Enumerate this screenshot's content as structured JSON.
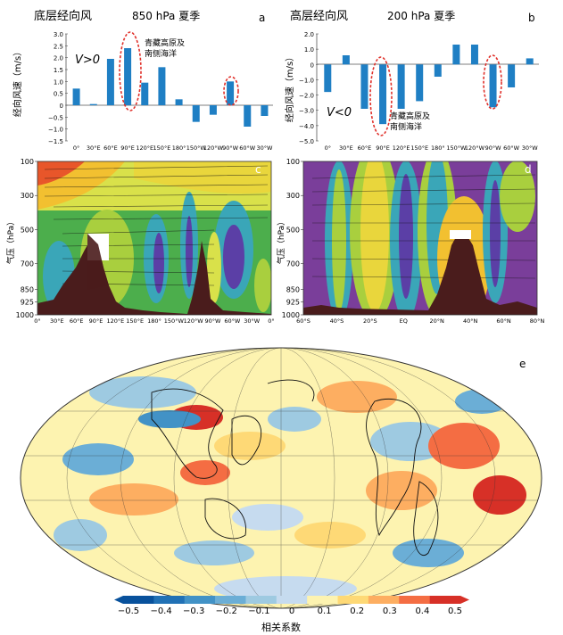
{
  "chart_data": [
    {
      "id": "a",
      "type": "bar",
      "panel_letter": "a",
      "title": "底层经向风",
      "subtitle": "850 hPa 夏季",
      "ylabel": "经向风速（m/s）",
      "ylim": [
        -1.5,
        3.0
      ],
      "yticks": [
        "3.0",
        "2.5",
        "2.0",
        "1.5",
        "1.0",
        "0.5",
        "0",
        "−0.5",
        "−1.0",
        "−1.5"
      ],
      "xticks": [
        "0°",
        "30°E",
        "60°E",
        "90°E",
        "120°E",
        "150°E",
        "180°",
        "150°W",
        "120°W",
        "90°W",
        "60°W",
        "30°W"
      ],
      "values": [
        0.7,
        0.05,
        1.95,
        2.4,
        0.95,
        1.6,
        0.25,
        -0.7,
        -0.4,
        1.0,
        -0.9,
        -0.45
      ],
      "annotation_v": "V>0",
      "annotation_note": [
        "青藏高原及",
        "南侧海洋"
      ],
      "color": "#1f7fc4"
    },
    {
      "id": "b",
      "type": "bar",
      "panel_letter": "b",
      "title": "高层经向风",
      "subtitle": "200 hPa 夏季",
      "ylabel": "经向风速（m/s）",
      "ylim": [
        -5.0,
        2.0
      ],
      "yticks": [
        "2.0",
        "1.0",
        "0",
        "−1.0",
        "−2.0",
        "−3.0",
        "−4.0",
        "−5.0"
      ],
      "xticks": [
        "0°",
        "30°E",
        "60°E",
        "90°E",
        "120°E",
        "150°E",
        "180°",
        "150°W",
        "120°W",
        "90°W",
        "60°W",
        "30°W"
      ],
      "values": [
        -1.8,
        0.6,
        -2.9,
        -3.9,
        -2.9,
        -2.4,
        -0.8,
        1.3,
        1.3,
        -2.8,
        -1.5,
        0.4
      ],
      "annotation_v": "V<0",
      "annotation_note": [
        "青藏高原及",
        "南侧海洋"
      ],
      "color": "#1f7fc4"
    },
    {
      "id": "c",
      "type": "heatmap",
      "panel_letter": "c",
      "ylabel": "气压（hPa）",
      "yticks": [
        "100",
        "300",
        "500",
        "700",
        "850",
        "925",
        "1000"
      ],
      "xticks": [
        "0°",
        "30°E",
        "60°E",
        "90°E",
        "120°E",
        "150°E",
        "180°",
        "150°W",
        "120°W",
        "90°W",
        "60°W",
        "30°W",
        "0°"
      ]
    },
    {
      "id": "d",
      "type": "heatmap",
      "panel_letter": "d",
      "ylabel": "气压（hPa）",
      "yticks": [
        "100",
        "300",
        "500",
        "700",
        "850",
        "925",
        "1000"
      ],
      "xticks": [
        "60°S",
        "40°S",
        "20°S",
        "EQ",
        "20°N",
        "40°N",
        "60°N",
        "80°N"
      ]
    },
    {
      "id": "e",
      "type": "heatmap",
      "panel_letter": "e",
      "colorbar_label": "相关系数",
      "colorbar_ticks": [
        "−0.5",
        "−0.4",
        "−0.3",
        "−0.2",
        "−0.1",
        "0",
        "0.1",
        "0.2",
        "0.3",
        "0.4",
        "0.5"
      ],
      "colorbar_colors": [
        "#08519c",
        "#2171b5",
        "#4292c6",
        "#6baed6",
        "#9ecae1",
        "#c6dbef",
        "#fdf3b0",
        "#fed976",
        "#fdae61",
        "#f46d43",
        "#d73027"
      ]
    }
  ]
}
